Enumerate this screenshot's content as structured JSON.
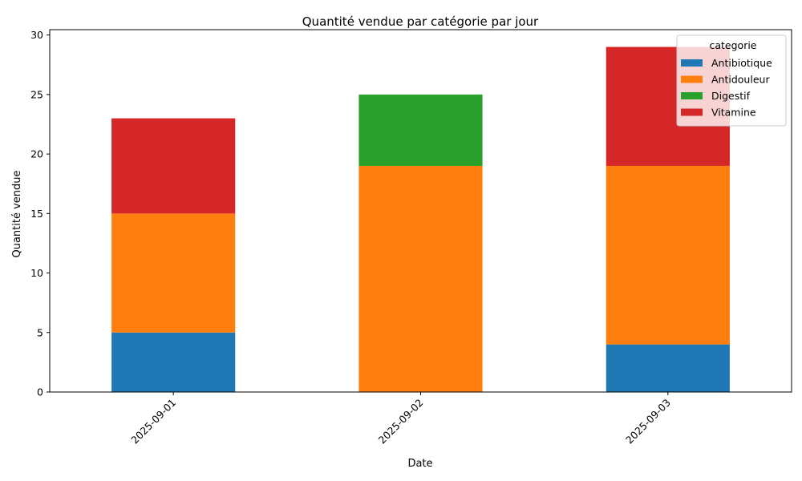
{
  "chart_data": {
    "type": "bar",
    "stacked": true,
    "title": "Quantité vendue par catégorie par jour",
    "xlabel": "Date",
    "ylabel": "Quantité vendue",
    "categories": [
      "2025-09-01",
      "2025-09-02",
      "2025-09-03"
    ],
    "series": [
      {
        "name": "Antibiotique",
        "color": "#1f77b4",
        "values": [
          5,
          0,
          4
        ]
      },
      {
        "name": "Antidouleur",
        "color": "#ff7f0e",
        "values": [
          10,
          19,
          15
        ]
      },
      {
        "name": "Digestif",
        "color": "#2ca02c",
        "values": [
          0,
          6,
          0
        ]
      },
      {
        "name": "Vitamine",
        "color": "#d62728",
        "values": [
          8,
          0,
          10
        ]
      }
    ],
    "ylim": [
      0,
      30.45
    ],
    "yticks": [
      0,
      5,
      10,
      15,
      20,
      25,
      30
    ],
    "legend": {
      "title": "categorie",
      "position": "top-right"
    },
    "grid": false
  }
}
